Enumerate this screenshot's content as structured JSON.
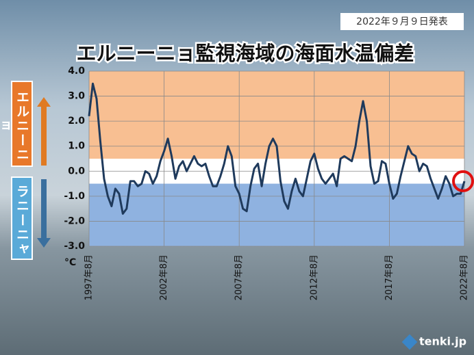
{
  "chart_data": {
    "type": "line",
    "date_note": "2022年９月９日発表",
    "title": "エルニーニョ監視海域の海面水温偏差",
    "el_nino_label": "エルニーニョ",
    "la_nina_label": "ラニーニャ",
    "y_unit": "°C",
    "brand": "tenki.jp",
    "categories": [
      "1997年8月",
      null,
      null,
      null,
      null,
      null,
      null,
      null,
      null,
      null,
      null,
      null,
      null,
      null,
      null,
      null,
      null,
      null,
      null,
      null,
      "2002年8月",
      null,
      null,
      null,
      null,
      null,
      null,
      null,
      null,
      null,
      null,
      null,
      null,
      null,
      null,
      null,
      null,
      null,
      null,
      null,
      "2007年8月",
      null,
      null,
      null,
      null,
      null,
      null,
      null,
      null,
      null,
      null,
      null,
      null,
      null,
      null,
      null,
      null,
      null,
      null,
      null,
      "2012年8月",
      null,
      null,
      null,
      null,
      null,
      null,
      null,
      null,
      null,
      null,
      null,
      null,
      null,
      null,
      null,
      null,
      null,
      null,
      null,
      "2017年8月",
      null,
      null,
      null,
      null,
      null,
      null,
      null,
      null,
      null,
      null,
      null,
      null,
      null,
      null,
      null,
      null,
      null,
      null,
      null,
      "2022年8月"
    ],
    "series": [
      {
        "color": "#1f3a5c",
        "values": [
          2.2,
          3.5,
          2.9,
          1.2,
          -0.3,
          -1.0,
          -1.4,
          -0.7,
          -0.9,
          -1.7,
          -1.5,
          -0.4,
          -0.4,
          -0.6,
          -0.5,
          0.0,
          -0.1,
          -0.5,
          -0.2,
          0.4,
          0.8,
          1.3,
          0.6,
          -0.3,
          0.2,
          0.4,
          0.0,
          0.3,
          0.6,
          0.3,
          0.2,
          0.3,
          -0.2,
          -0.6,
          -0.6,
          -0.2,
          0.3,
          1.0,
          0.6,
          -0.6,
          -0.9,
          -1.5,
          -1.6,
          -0.6,
          0.1,
          0.3,
          -0.6,
          0.3,
          1.0,
          1.3,
          1.0,
          -0.4,
          -1.2,
          -1.5,
          -0.8,
          -0.3,
          -0.8,
          -1.0,
          -0.3,
          0.4,
          0.7,
          0.1,
          -0.3,
          -0.5,
          -0.3,
          -0.1,
          -0.6,
          0.5,
          0.6,
          0.5,
          0.4,
          1.0,
          2.0,
          2.8,
          2.0,
          0.2,
          -0.5,
          -0.4,
          0.4,
          0.3,
          -0.5,
          -1.1,
          -0.9,
          -0.2,
          0.4,
          1.0,
          0.7,
          0.6,
          0.0,
          0.3,
          0.2,
          -0.3,
          -0.7,
          -1.1,
          -0.7,
          -0.2,
          -0.5,
          -1.0,
          -0.9,
          -0.9,
          -0.4
        ]
      }
    ],
    "bands": [
      {
        "from": 0.5,
        "to": 4,
        "color": "#f8bf92"
      },
      {
        "from": -0.5,
        "to": 0.5,
        "color": "#ffffff"
      },
      {
        "from": -3,
        "to": -0.5,
        "color": "#8fb2e0"
      }
    ],
    "ylim": [
      -3,
      4
    ],
    "yticks": [
      {
        "value": 4,
        "label": "4.0"
      },
      {
        "value": 3,
        "label": "3.0"
      },
      {
        "value": 2,
        "label": "2.0"
      },
      {
        "value": 1,
        "label": "1.0"
      },
      {
        "value": 0,
        "label": "0.0"
      },
      {
        "value": -1,
        "label": "-1.0"
      },
      {
        "value": -2,
        "label": "-2.0"
      },
      {
        "value": -3,
        "label": "-3.0"
      }
    ],
    "grid": true
  }
}
